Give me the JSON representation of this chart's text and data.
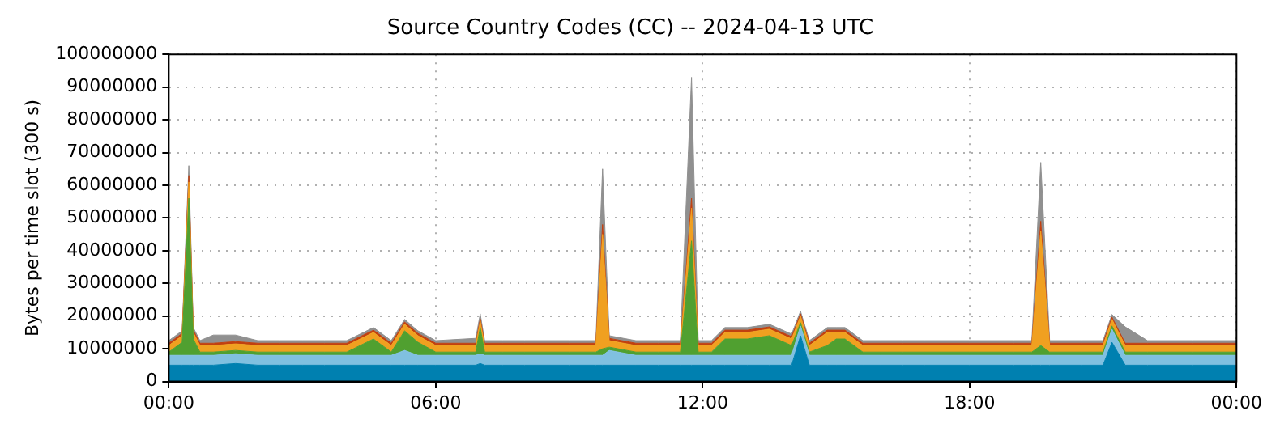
{
  "chart_data": {
    "type": "area",
    "title": "Source Country Codes (CC) -- 2024-04-13 UTC",
    "ylabel": "Bytes per time slot (300 s)",
    "stacked": true,
    "grid": true,
    "legend": false,
    "marker": "none",
    "x": [
      0,
      0.3,
      0.45,
      0.55,
      0.7,
      1.0,
      1.5,
      2.0,
      2.5,
      3.0,
      3.5,
      4.0,
      4.6,
      5.0,
      5.3,
      5.6,
      6.0,
      6.9,
      7.0,
      7.1,
      7.5,
      8.0,
      9.0,
      9.6,
      9.75,
      9.9,
      10.5,
      11.0,
      11.5,
      11.75,
      11.9,
      12.2,
      12.5,
      13.0,
      13.5,
      14.0,
      14.2,
      14.4,
      14.8,
      15.0,
      15.2,
      15.6,
      16.0,
      16.5,
      17.0,
      18.0,
      19.0,
      19.4,
      19.6,
      19.8,
      20.5,
      21.0,
      21.2,
      21.5,
      22.0,
      23.0,
      24
    ],
    "xlim": [
      0,
      24
    ],
    "xticks": [
      {
        "value": 0,
        "label": "00:00"
      },
      {
        "value": 6,
        "label": "06:00"
      },
      {
        "value": 12,
        "label": "12:00"
      },
      {
        "value": 18,
        "label": "18:00"
      },
      {
        "value": 24,
        "label": "00:00"
      }
    ],
    "ylim": [
      0,
      100000000
    ],
    "yticks": [
      0,
      10000000,
      20000000,
      30000000,
      40000000,
      50000000,
      60000000,
      70000000,
      80000000,
      90000000,
      100000000
    ],
    "series": [
      {
        "color": "#0080b0",
        "values": [
          5000000,
          5000000,
          5000000,
          5000000,
          5000000,
          5000000,
          5500000,
          5000000,
          5000000,
          5000000,
          5000000,
          5000000,
          5000000,
          5000000,
          5000000,
          5000000,
          5000000,
          5000000,
          5500000,
          5000000,
          5000000,
          5000000,
          5000000,
          5000000,
          5000000,
          5000000,
          5000000,
          5000000,
          5000000,
          5000000,
          5000000,
          5000000,
          5000000,
          5000000,
          5000000,
          5000000,
          14000000,
          5000000,
          5000000,
          5000000,
          5000000,
          5000000,
          5000000,
          5000000,
          5000000,
          5000000,
          5000000,
          5000000,
          5000000,
          5000000,
          5000000,
          5000000,
          12000000,
          5000000,
          5000000,
          5000000,
          5000000
        ]
      },
      {
        "color": "#80c0e0",
        "values": [
          3000000,
          3000000,
          3000000,
          3000000,
          3000000,
          3000000,
          3000000,
          3000000,
          3000000,
          3000000,
          3000000,
          3000000,
          3000000,
          3000000,
          4500000,
          3000000,
          3000000,
          3000000,
          3000000,
          3000000,
          3000000,
          3000000,
          3000000,
          3000000,
          3000000,
          4500000,
          3000000,
          3000000,
          3000000,
          3000000,
          3000000,
          3000000,
          3000000,
          3000000,
          3000000,
          3000000,
          3000000,
          3000000,
          3000000,
          3000000,
          3000000,
          3000000,
          3000000,
          3000000,
          3000000,
          3000000,
          3000000,
          3000000,
          3000000,
          3000000,
          3000000,
          3000000,
          4000000,
          3000000,
          3000000,
          3000000,
          3000000
        ]
      },
      {
        "color": "#50a030",
        "values": [
          1000000,
          4000000,
          48000000,
          5000000,
          1000000,
          1000000,
          1000000,
          1000000,
          1000000,
          1000000,
          1000000,
          1000000,
          5000000,
          1000000,
          6000000,
          4000000,
          1000000,
          1000000,
          8000000,
          1000000,
          1000000,
          1000000,
          1000000,
          1000000,
          2000000,
          1000000,
          1000000,
          1000000,
          1000000,
          35000000,
          1000000,
          1000000,
          5000000,
          5000000,
          6000000,
          3000000,
          1000000,
          1000000,
          3000000,
          5000000,
          5000000,
          1000000,
          1000000,
          1000000,
          1000000,
          1000000,
          1000000,
          1000000,
          3000000,
          1000000,
          1000000,
          1000000,
          1000000,
          1000000,
          1000000,
          1000000,
          1000000
        ]
      },
      {
        "color": "#f0a020",
        "values": [
          2000000,
          2000000,
          5000000,
          2000000,
          2000000,
          2000000,
          2000000,
          2000000,
          2000000,
          2000000,
          2000000,
          2000000,
          2000000,
          2000000,
          2000000,
          2000000,
          2000000,
          2000000,
          2000000,
          2000000,
          2000000,
          2000000,
          2000000,
          2000000,
          35000000,
          2000000,
          2000000,
          2000000,
          2000000,
          10000000,
          2000000,
          2000000,
          2000000,
          2000000,
          2000000,
          2000000,
          2000000,
          2000000,
          4000000,
          2000000,
          2000000,
          2000000,
          2000000,
          2000000,
          2000000,
          2000000,
          2000000,
          2000000,
          35000000,
          2000000,
          2000000,
          2000000,
          2000000,
          2000000,
          2000000,
          2000000,
          2000000
        ]
      },
      {
        "color": "#c04010",
        "values": [
          700000,
          700000,
          2000000,
          700000,
          700000,
          700000,
          700000,
          700000,
          700000,
          700000,
          700000,
          700000,
          700000,
          700000,
          700000,
          700000,
          700000,
          700000,
          700000,
          700000,
          700000,
          700000,
          700000,
          700000,
          3000000,
          700000,
          700000,
          700000,
          700000,
          3000000,
          700000,
          700000,
          700000,
          700000,
          700000,
          700000,
          700000,
          700000,
          700000,
          700000,
          700000,
          700000,
          700000,
          700000,
          700000,
          700000,
          700000,
          700000,
          3000000,
          700000,
          700000,
          700000,
          700000,
          700000,
          700000,
          700000,
          700000
        ]
      },
      {
        "color": "#909090",
        "values": [
          800000,
          800000,
          3000000,
          800000,
          800000,
          2500000,
          2000000,
          800000,
          800000,
          800000,
          800000,
          800000,
          800000,
          800000,
          800000,
          800000,
          800000,
          1500000,
          1500000,
          800000,
          800000,
          800000,
          800000,
          800000,
          17000000,
          800000,
          800000,
          800000,
          800000,
          37000000,
          800000,
          800000,
          800000,
          800000,
          800000,
          800000,
          800000,
          800000,
          800000,
          800000,
          800000,
          800000,
          800000,
          800000,
          800000,
          800000,
          800000,
          800000,
          18000000,
          800000,
          800000,
          800000,
          800000,
          5000000,
          800000,
          800000,
          800000
        ]
      }
    ]
  }
}
